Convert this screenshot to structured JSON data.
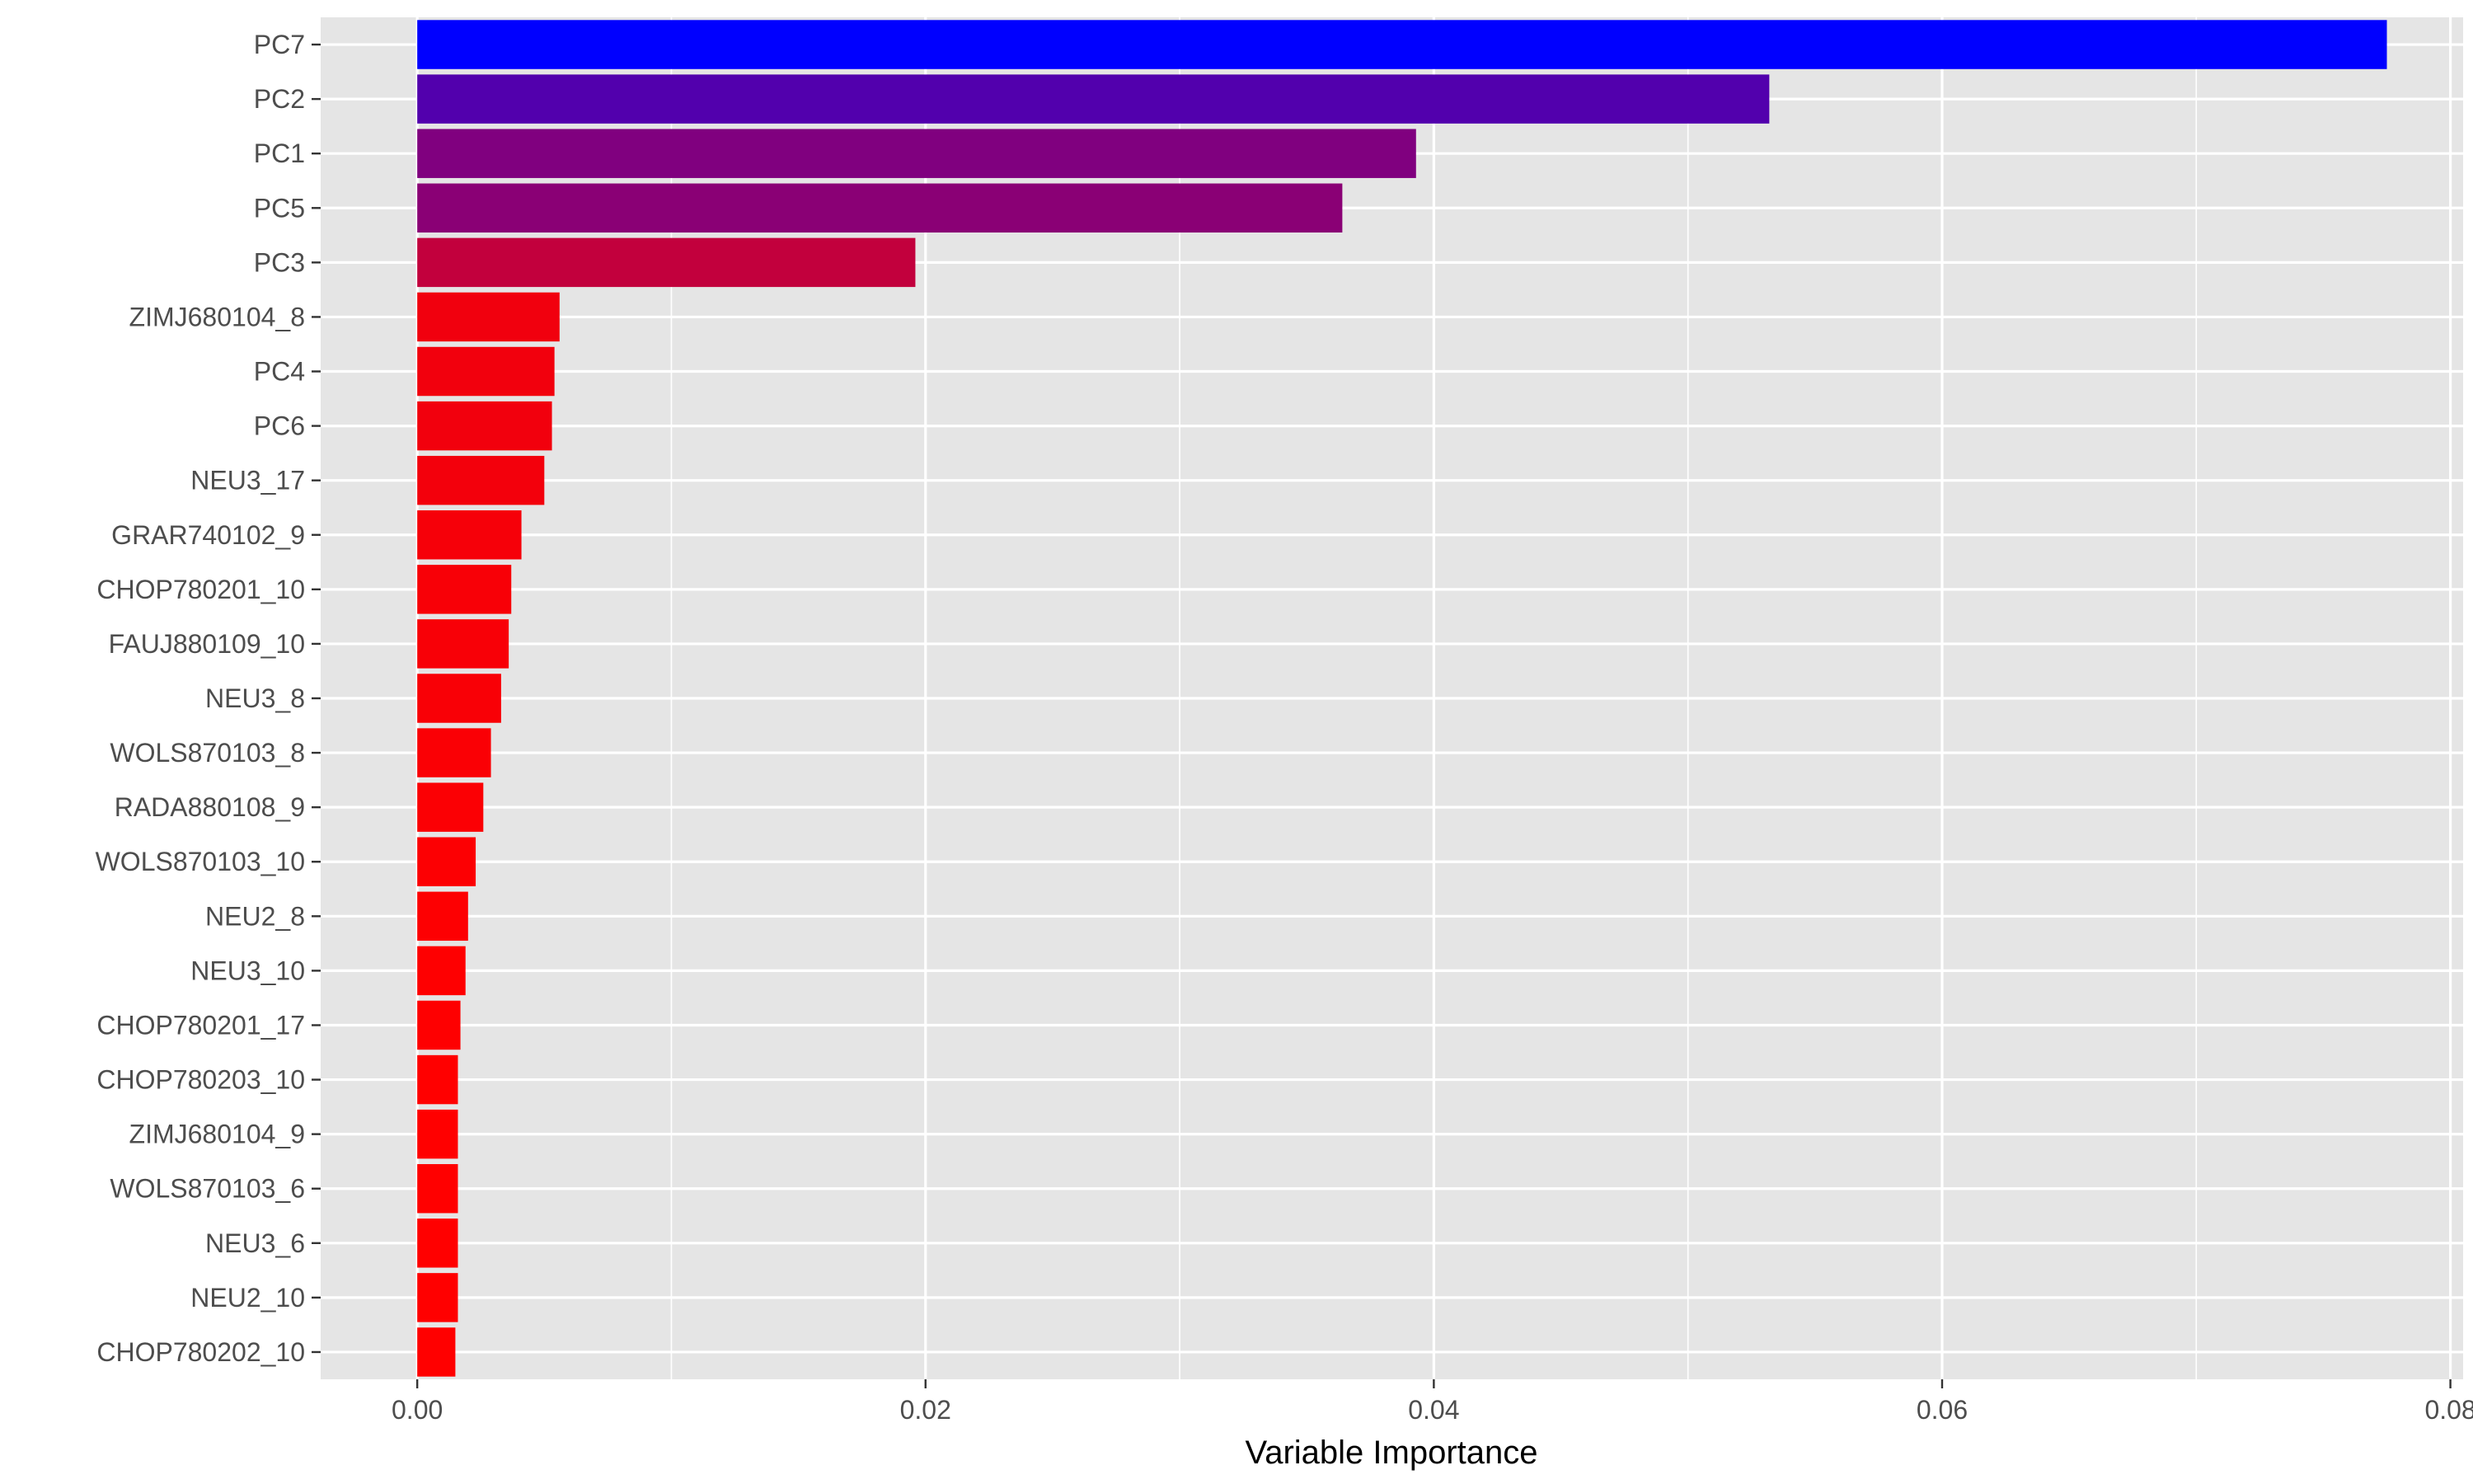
{
  "chart_data": {
    "type": "bar",
    "orientation": "horizontal",
    "title": "",
    "xlabel": "Variable Importance",
    "ylabel": "",
    "xlim": [
      -0.0038,
      0.0805
    ],
    "x_ticks": [
      0.0,
      0.02,
      0.04,
      0.06,
      0.08
    ],
    "x_tick_labels": [
      "0.00",
      "0.02",
      "0.04",
      "0.06",
      "0.08"
    ],
    "grid": true,
    "legend": "none",
    "colors": {
      "panel_bg": "#e5e5e5",
      "grid": "#ffffff",
      "low": "#ff0000",
      "high": "#0000ff"
    },
    "categories": [
      "PC7",
      "PC2",
      "PC1",
      "PC5",
      "PC3",
      "ZIMJ680104_8",
      "PC4",
      "PC6",
      "NEU3_17",
      "GRAR740102_9",
      "CHOP780201_10",
      "FAUJ880109_10",
      "NEU3_8",
      "WOLS870103_8",
      "RADA880108_9",
      "WOLS870103_10",
      "NEU2_8",
      "NEU3_10",
      "CHOP780201_17",
      "CHOP780203_10",
      "ZIMJ680104_9",
      "WOLS870103_6",
      "NEU3_6",
      "NEU2_10",
      "CHOP780202_10"
    ],
    "values": [
      0.0775,
      0.0532,
      0.0393,
      0.0364,
      0.0196,
      0.0056,
      0.0054,
      0.0053,
      0.005,
      0.0041,
      0.0037,
      0.0036,
      0.0033,
      0.0029,
      0.0026,
      0.0023,
      0.002,
      0.0019,
      0.0017,
      0.0016,
      0.0016,
      0.0016,
      0.0016,
      0.0016,
      0.0015
    ]
  }
}
